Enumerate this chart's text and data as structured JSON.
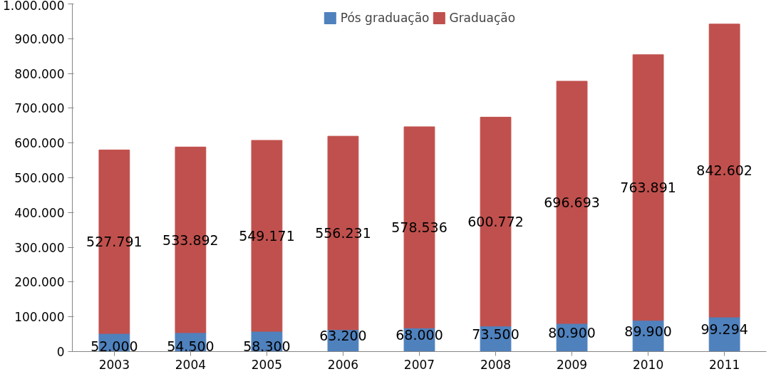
{
  "chart_data": {
    "type": "bar",
    "stacked": true,
    "categories": [
      "2003",
      "2004",
      "2005",
      "2006",
      "2007",
      "2008",
      "2009",
      "2010",
      "2011"
    ],
    "series": [
      {
        "name": "Pós graduação",
        "color": "#4f81bd",
        "values": [
          52000,
          54500,
          58300,
          63200,
          68000,
          73500,
          80900,
          89900,
          99294
        ],
        "value_labels": [
          "52.000",
          "54.500",
          "58.300",
          "63.200",
          "68.000",
          "73.500",
          "80.900",
          "89.900",
          "99.294"
        ]
      },
      {
        "name": "Graduação",
        "color": "#c0504d",
        "values": [
          527791,
          533892,
          549171,
          556231,
          578536,
          600772,
          696693,
          763891,
          842602
        ],
        "value_labels": [
          "527.791",
          "533.892",
          "549.171",
          "556.231",
          "578.536",
          "600.772",
          "696.693",
          "763.891",
          "842.602"
        ]
      }
    ],
    "ylim": [
      0,
      1000000
    ],
    "yticks": [
      {
        "value": 0,
        "label": "0"
      },
      {
        "value": 100000,
        "label": "100.000"
      },
      {
        "value": 200000,
        "label": "200.000"
      },
      {
        "value": 300000,
        "label": "300.000"
      },
      {
        "value": 400000,
        "label": "400.000"
      },
      {
        "value": 500000,
        "label": "500.000"
      },
      {
        "value": 600000,
        "label": "600.000"
      },
      {
        "value": 700000,
        "label": "700.000"
      },
      {
        "value": 800000,
        "label": "800.000"
      },
      {
        "value": 900000,
        "label": "900.000"
      },
      {
        "value": 1000000,
        "label": "1.000.000"
      }
    ],
    "grid": false,
    "legend": "top"
  }
}
